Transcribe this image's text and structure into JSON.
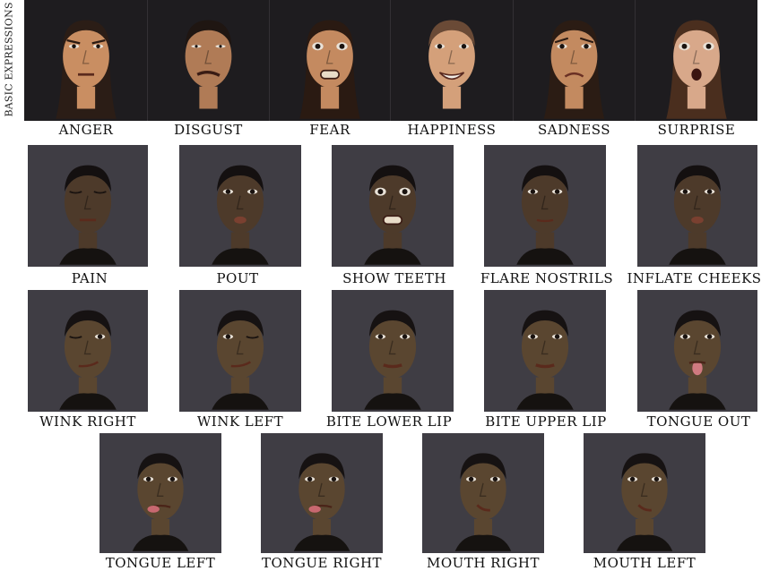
{
  "side_label": "BASIC EXPRESSIONS",
  "basic_expressions": [
    {
      "label": "ANGER",
      "skin": "#c98e62",
      "hair": "#2b1d16",
      "eyes": "furrow",
      "mouth": "tight"
    },
    {
      "label": "DISGUST",
      "skin": "#b07b56",
      "hair": "#1f1612",
      "eyes": "narrow",
      "mouth": "grimace"
    },
    {
      "label": "FEAR",
      "skin": "#c48a60",
      "hair": "#2a1a12",
      "eyes": "wide",
      "mouth": "teeth"
    },
    {
      "label": "HAPPINESS",
      "skin": "#d4a07a",
      "hair": "#6a4a36",
      "eyes": "normal",
      "mouth": "smile"
    },
    {
      "label": "SADNESS",
      "skin": "#c38a60",
      "hair": "#2b1c14",
      "eyes": "sad",
      "mouth": "frown"
    },
    {
      "label": "SURPRISE",
      "skin": "#d8a88a",
      "hair": "#4a2e1e",
      "eyes": "wide",
      "mouth": "open"
    }
  ],
  "row2": [
    {
      "label": "PAIN",
      "eyes": "closed",
      "mouth": "tight"
    },
    {
      "label": "POUT",
      "eyes": "normal",
      "mouth": "pout"
    },
    {
      "label": "SHOW TEETH",
      "eyes": "wide",
      "mouth": "teeth"
    },
    {
      "label": "FLARE NOSTRILS",
      "eyes": "normal",
      "mouth": "neutral"
    },
    {
      "label": "INFLATE CHEEKS",
      "eyes": "normal",
      "mouth": "pout"
    }
  ],
  "row3": [
    {
      "label": "WINK RIGHT",
      "eyes": "wink-right",
      "mouth": "smirk"
    },
    {
      "label": "WINK LEFT",
      "eyes": "wink-left",
      "mouth": "smirk"
    },
    {
      "label": "BITE LOWER LIP",
      "eyes": "normal",
      "mouth": "bite"
    },
    {
      "label": "BITE UPPER LIP",
      "eyes": "normal",
      "mouth": "bite"
    },
    {
      "label": "TONGUE OUT",
      "eyes": "normal",
      "mouth": "tongue"
    }
  ],
  "row4": [
    {
      "label": "TONGUE LEFT",
      "eyes": "normal",
      "mouth": "tongue-side"
    },
    {
      "label": "TONGUE RIGHT",
      "eyes": "normal",
      "mouth": "tongue-side"
    },
    {
      "label": "MOUTH RIGHT",
      "eyes": "normal",
      "mouth": "shift"
    },
    {
      "label": "MOUTH LEFT",
      "eyes": "normal",
      "mouth": "shift"
    }
  ],
  "colors": {
    "background": "#ffffff",
    "basic_panel_bg": "#1e1c1f",
    "subject_panel_bg": "#3f3d44",
    "subject2_skin": "#4d3a2a",
    "subject3_skin": "#5a4630",
    "label_text": "#111111"
  }
}
